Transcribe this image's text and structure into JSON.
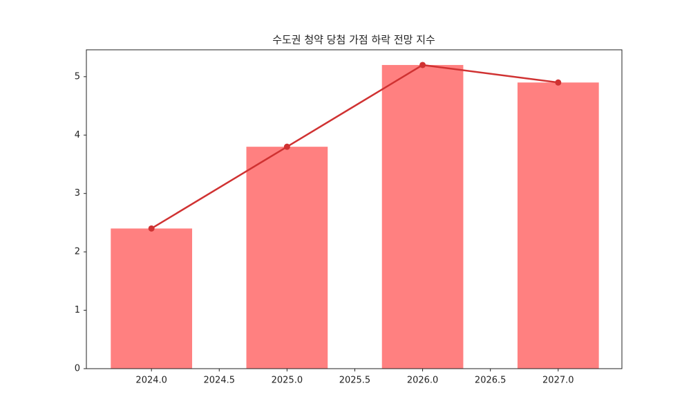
{
  "chart_data": {
    "type": "bar",
    "title": "수도권 청약 당첨 가점 하락 전망 지수",
    "x": [
      2024,
      2025,
      2026,
      2027
    ],
    "series": [
      {
        "type": "bar",
        "color": "#ff8080",
        "values": [
          2.4,
          3.8,
          5.2,
          4.9
        ]
      },
      {
        "type": "line",
        "color": "#d03232",
        "values": [
          2.4,
          3.8,
          5.2,
          4.9
        ]
      }
    ],
    "xlim": [
      2023.52,
      2027.47
    ],
    "xticks": [
      {
        "value": 2024,
        "label": "2024.0"
      },
      {
        "value": 2024.5,
        "label": "2024.5"
      },
      {
        "value": 2025,
        "label": "2025.0"
      },
      {
        "value": 2025.5,
        "label": "2025.5"
      },
      {
        "value": 2026,
        "label": "2026.0"
      },
      {
        "value": 2026.5,
        "label": "2026.5"
      },
      {
        "value": 2027,
        "label": "2027.0"
      }
    ],
    "ylim": [
      0,
      5.46
    ],
    "yticks": [
      0,
      1,
      2,
      3,
      4,
      5
    ],
    "grid": false
  }
}
